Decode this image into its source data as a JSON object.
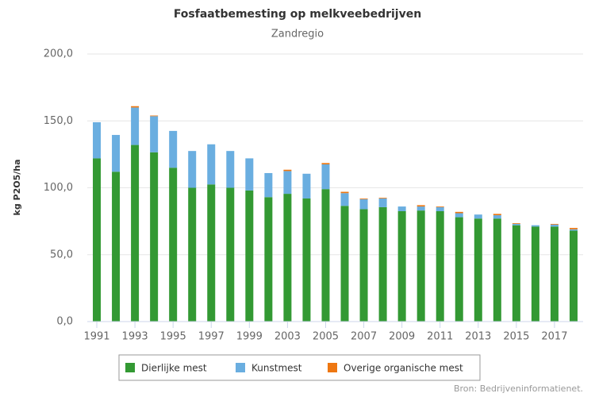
{
  "chart_data": {
    "type": "stacked_bar",
    "title": "Fosfaatbemesting op melkveebedrijven",
    "subtitle": "Zandregio",
    "y_label": "kg P2O5/ha",
    "source": "Bron: Bedrijveninformatienet.",
    "categories": [
      "1991",
      null,
      "1993",
      null,
      "1995",
      null,
      "1997",
      null,
      "1999",
      null,
      "2003",
      null,
      "2005",
      null,
      "2007",
      null,
      "2009",
      null,
      "2011",
      null,
      "2013",
      null,
      "2015",
      null,
      "2017",
      null
    ],
    "series": [
      {
        "name": "Dierlijke mest",
        "color": "#339933",
        "values": [
          122,
          112,
          132,
          126.5,
          115,
          100,
          102.5,
          100,
          98,
          93,
          95.5,
          92,
          99,
          86.5,
          84,
          85.5,
          82.5,
          83,
          82.5,
          78,
          77,
          77,
          72,
          71,
          71,
          68
        ]
      },
      {
        "name": "Kunstmest",
        "color": "#6aaee0",
        "values": [
          27,
          27.5,
          28,
          27,
          27.5,
          27.5,
          30,
          27.5,
          24,
          18,
          17,
          18.5,
          18.5,
          9.5,
          7.5,
          6.5,
          3.5,
          3,
          3,
          3,
          3,
          2.5,
          1,
          1,
          1.5,
          1
        ]
      },
      {
        "name": "Overige organische mest",
        "color": "#ee7711",
        "values": [
          0,
          0,
          1,
          0.5,
          0,
          0,
          0,
          0,
          0,
          0,
          1,
          0,
          1,
          1,
          0.5,
          0.5,
          0,
          1,
          0.5,
          1,
          0,
          1,
          0.5,
          0,
          0.5,
          1
        ]
      }
    ],
    "ylim": [
      0,
      200
    ],
    "yticks": [
      {
        "value": 0,
        "label": "0,0"
      },
      {
        "value": 50,
        "label": "50,0"
      },
      {
        "value": 100,
        "label": "100,0"
      },
      {
        "value": 150,
        "label": "150,0"
      },
      {
        "value": 200,
        "label": "200,0"
      }
    ],
    "grid": true,
    "legend": "bottom"
  }
}
